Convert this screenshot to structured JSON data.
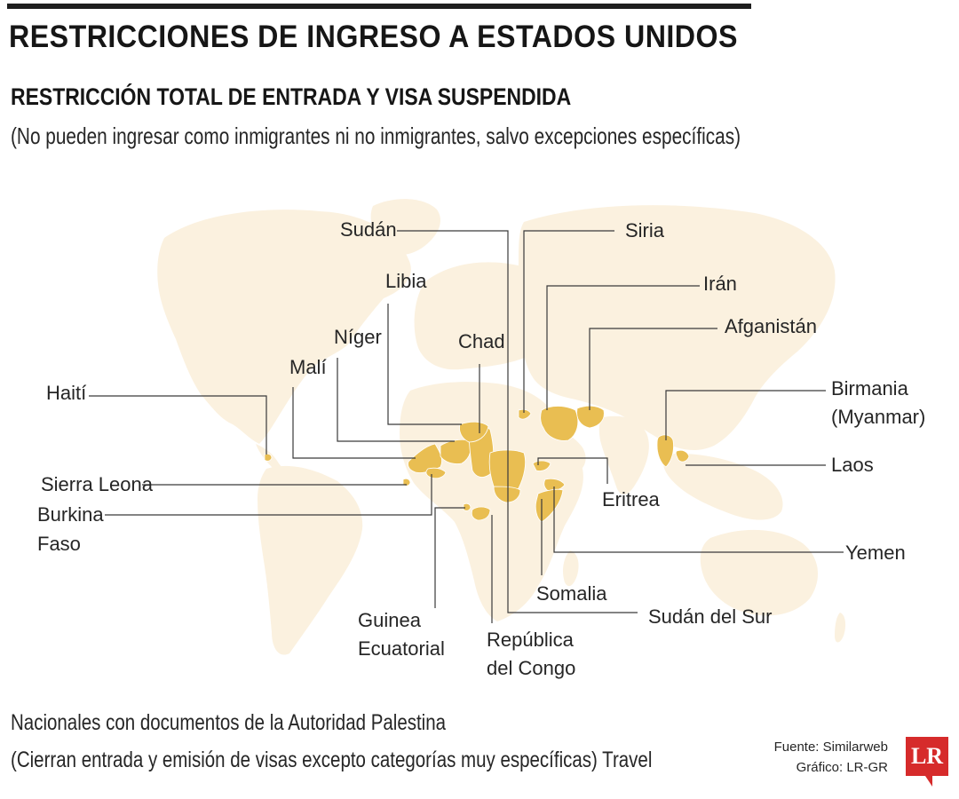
{
  "title": "RESTRICCIONES DE INGRESO A ESTADOS UNIDOS",
  "subtitle": "RESTRICCIÓN TOTAL DE ENTRADA Y VISA SUSPENDIDA",
  "subnote": "(No pueden ingresar como inmigrantes ni no inmigrantes, salvo excepciones específicas)",
  "countries": {
    "sudan": "Sudán",
    "siria": "Siria",
    "libia": "Libia",
    "iran": "Irán",
    "niger": "Níger",
    "chad": "Chad",
    "afganistan": "Afganistán",
    "mali": "Malí",
    "haiti": "Haití",
    "birmania_1": "Birmania",
    "birmania_2": "(Myanmar)",
    "laos": "Laos",
    "sierra_leona": "Sierra Leona",
    "burkina_1": "Burkina",
    "burkina_2": "Faso",
    "eritrea": "Eritrea",
    "yemen": "Yemen",
    "somalia": "Somalia",
    "sudan_del_sur": "Sudán del Sur",
    "guinea_1": "Guinea",
    "guinea_2": "Ecuatorial",
    "congo_1": "República",
    "congo_2": "del Congo"
  },
  "footer": {
    "line1": "Nacionales con documentos de la Autoridad Palestina",
    "line2": "(Cierran entrada y emisión de visas excepto categorías muy específicas) Travel"
  },
  "credits": {
    "source": "Fuente: Similarweb",
    "graphic": "Gráfico: LR-GR"
  },
  "logo": "LR",
  "colors": {
    "highlight": "#e9be52",
    "land": "#fbf1df",
    "leader": "#3a3a3a",
    "logo": "#d62b2b"
  }
}
